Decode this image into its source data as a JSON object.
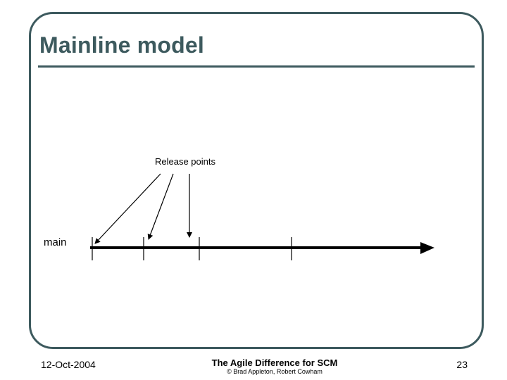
{
  "slide": {
    "title": "Mainline model",
    "accent_color": "#3d5a5e"
  },
  "diagram": {
    "release_label": "Release points",
    "branch_label": "main",
    "release_point_count": 3,
    "tick_count": 4
  },
  "footer": {
    "date": "12-Oct-2004",
    "title": "The Agile Difference for SCM",
    "copyright": "© Brad Appleton, Robert Cowham",
    "page_number": "23"
  }
}
